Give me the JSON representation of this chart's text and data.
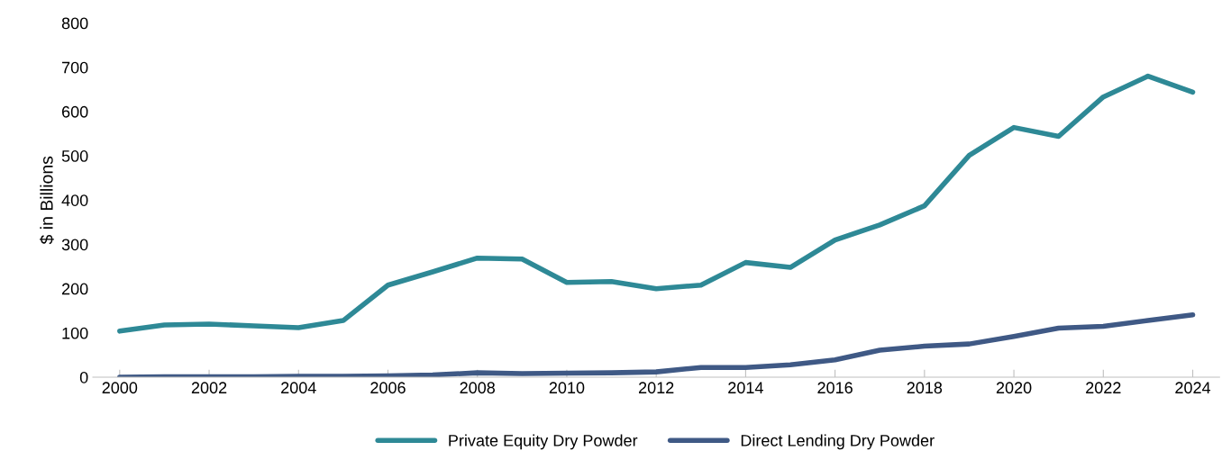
{
  "chart_data": {
    "type": "line",
    "ylabel": "$ in Billions",
    "x": [
      2000,
      2001,
      2002,
      2003,
      2004,
      2005,
      2006,
      2007,
      2008,
      2009,
      2010,
      2011,
      2012,
      2013,
      2014,
      2015,
      2016,
      2017,
      2018,
      2019,
      2020,
      2021,
      2022,
      2023,
      2024
    ],
    "series": [
      {
        "name": "Private Equity Dry Powder",
        "color": "#2e8996",
        "values": [
          104,
          118,
          120,
          116,
          112,
          128,
          208,
          238,
          269,
          267,
          214,
          216,
          200,
          208,
          259,
          248,
          310,
          344,
          387,
          501,
          564,
          544,
          633,
          680,
          644
        ]
      },
      {
        "name": "Direct Lending Dry Powder",
        "color": "#3f5985",
        "values": [
          0,
          1,
          1,
          1,
          2,
          2,
          3,
          5,
          10,
          8,
          9,
          10,
          12,
          22,
          22,
          28,
          39,
          61,
          70,
          75,
          92,
          111,
          115,
          128,
          141
        ]
      }
    ],
    "xlim": [
      1999.4,
      2024.6
    ],
    "xticks": [
      2000,
      2002,
      2004,
      2006,
      2008,
      2010,
      2012,
      2014,
      2016,
      2018,
      2020,
      2022,
      2024
    ],
    "ylim": [
      0,
      800
    ],
    "yticks": [
      0,
      100,
      200,
      300,
      400,
      500,
      600,
      700,
      800
    ],
    "grid": false,
    "legend": "bottom",
    "marker": "none",
    "line_style": "solid"
  }
}
